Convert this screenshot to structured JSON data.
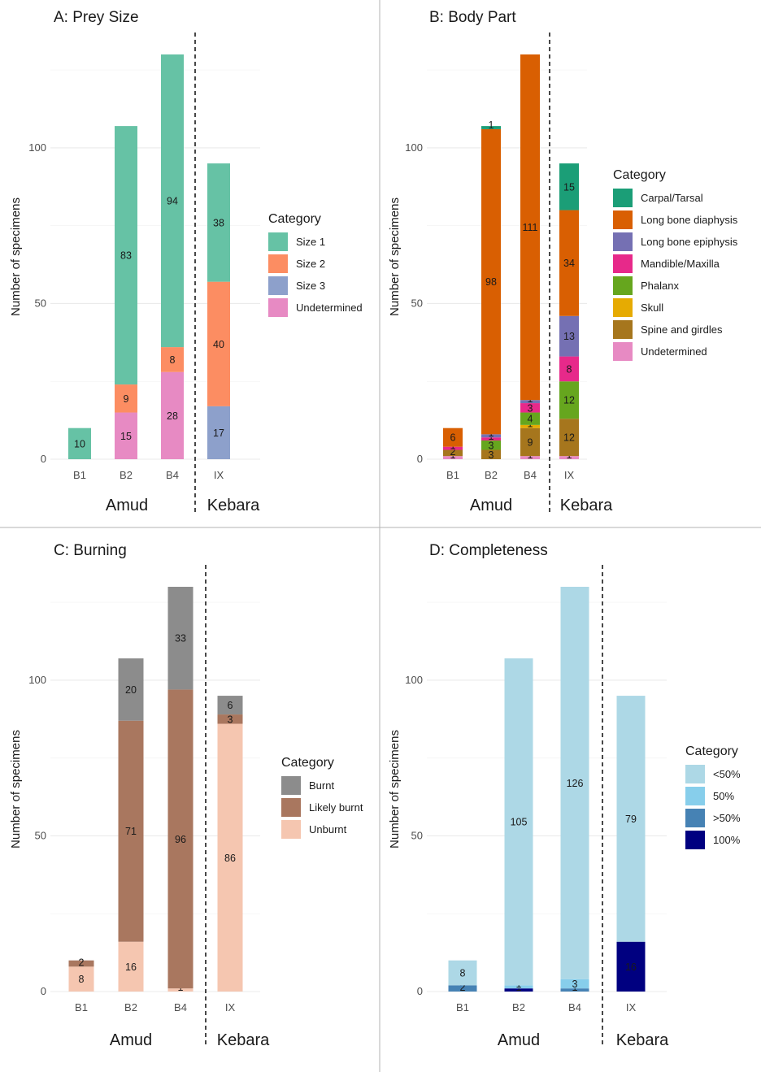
{
  "chart_data": [
    {
      "id": "A",
      "type": "bar",
      "stacked": true,
      "title": "A: Prey Size",
      "ylabel": "Number of specimens",
      "xlabel": "",
      "ylim": [
        0,
        130
      ],
      "yticks": [
        0,
        50,
        100
      ],
      "categories": [
        "B1",
        "B2",
        "B4",
        "IX"
      ],
      "site_groups": [
        {
          "name": "Amud",
          "categories": [
            "B1",
            "B2",
            "B4"
          ]
        },
        {
          "name": "Kebara",
          "categories": [
            "IX"
          ]
        }
      ],
      "legend_title": "Category",
      "series": [
        {
          "name": "Size 1",
          "color": "#66c2a5",
          "values": [
            10,
            83,
            94,
            38
          ]
        },
        {
          "name": "Size 2",
          "color": "#fc8d62",
          "values": [
            0,
            9,
            8,
            40
          ]
        },
        {
          "name": "Size 3",
          "color": "#8da0cb",
          "values": [
            0,
            0,
            0,
            17
          ]
        },
        {
          "name": "Undetermined",
          "color": "#e78ac3",
          "values": [
            0,
            15,
            28,
            0
          ]
        }
      ]
    },
    {
      "id": "B",
      "type": "bar",
      "stacked": true,
      "title": "B: Body Part",
      "ylabel": "Number of specimens",
      "xlabel": "",
      "ylim": [
        0,
        130
      ],
      "yticks": [
        0,
        50,
        100
      ],
      "categories": [
        "B1",
        "B2",
        "B4",
        "IX"
      ],
      "site_groups": [
        {
          "name": "Amud",
          "categories": [
            "B1",
            "B2",
            "B4"
          ]
        },
        {
          "name": "Kebara",
          "categories": [
            "IX"
          ]
        }
      ],
      "legend_title": "Category",
      "series": [
        {
          "name": "Carpal/Tarsal",
          "color": "#1b9e77",
          "values": [
            0,
            1,
            0,
            15
          ]
        },
        {
          "name": "Long bone diaphysis",
          "color": "#d95f02",
          "values": [
            6,
            98,
            111,
            34
          ]
        },
        {
          "name": "Long bone epiphysis",
          "color": "#7570b3",
          "values": [
            0,
            1,
            1,
            13
          ]
        },
        {
          "name": "Mandible/Maxilla",
          "color": "#e7298a",
          "values": [
            1,
            1,
            3,
            8
          ]
        },
        {
          "name": "Phalanx",
          "color": "#66a61e",
          "values": [
            0,
            3,
            4,
            12
          ]
        },
        {
          "name": "Skull",
          "color": "#e6ab02",
          "values": [
            0,
            0,
            1,
            0
          ]
        },
        {
          "name": "Spine and girdles",
          "color": "#a6761d",
          "values": [
            2,
            3,
            9,
            12
          ]
        },
        {
          "name": "Undetermined",
          "color": "#e78ac3",
          "values": [
            1,
            0,
            1,
            1
          ]
        }
      ]
    },
    {
      "id": "C",
      "type": "bar",
      "stacked": true,
      "title": "C: Burning",
      "ylabel": "Number of specimens",
      "xlabel": "",
      "ylim": [
        0,
        130
      ],
      "yticks": [
        0,
        50,
        100
      ],
      "categories": [
        "B1",
        "B2",
        "B4",
        "IX"
      ],
      "site_groups": [
        {
          "name": "Amud",
          "categories": [
            "B1",
            "B2",
            "B4"
          ]
        },
        {
          "name": "Kebara",
          "categories": [
            "IX"
          ]
        }
      ],
      "legend_title": "Category",
      "series": [
        {
          "name": "Burnt",
          "color": "#8c8c8c",
          "values": [
            0,
            20,
            33,
            6
          ]
        },
        {
          "name": "Likely burnt",
          "color": "#a9775f",
          "values": [
            2,
            71,
            96,
            3
          ]
        },
        {
          "name": "Unburnt",
          "color": "#f5c6b0",
          "values": [
            8,
            16,
            1,
            86
          ]
        }
      ]
    },
    {
      "id": "D",
      "type": "bar",
      "stacked": true,
      "title": "D: Completeness",
      "ylabel": "Number of specimens",
      "xlabel": "",
      "ylim": [
        0,
        130
      ],
      "yticks": [
        0,
        50,
        100
      ],
      "categories": [
        "B1",
        "B2",
        "B4",
        "IX"
      ],
      "site_groups": [
        {
          "name": "Amud",
          "categories": [
            "B1",
            "B2",
            "B4"
          ]
        },
        {
          "name": "Kebara",
          "categories": [
            "IX"
          ]
        }
      ],
      "legend_title": "Category",
      "series": [
        {
          "name": "<50%",
          "color": "#add8e6",
          "values": [
            8,
            105,
            126,
            79
          ]
        },
        {
          "name": "50%",
          "color": "#87ceeb",
          "values": [
            0,
            1,
            3,
            0
          ]
        },
        {
          "name": ">50%",
          "color": "#4682b4",
          "values": [
            2,
            0,
            1,
            0
          ]
        },
        {
          "name": "100%",
          "color": "#000080",
          "values": [
            0,
            1,
            0,
            16
          ]
        }
      ]
    }
  ]
}
